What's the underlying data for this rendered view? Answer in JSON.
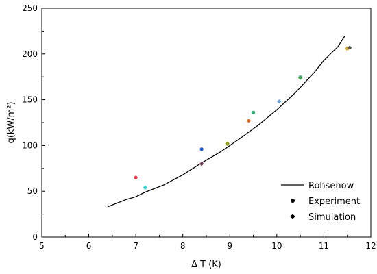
{
  "chart_data": {
    "type": "line",
    "xlabel": "Δ T (K)",
    "ylabel": "q(kW/m²)",
    "xlim": [
      5,
      12
    ],
    "ylim": [
      0,
      250
    ],
    "xticks": [
      "5",
      "6",
      "7",
      "8",
      "9",
      "10",
      "11",
      "12"
    ],
    "yticks": [
      "0",
      "50",
      "100",
      "150",
      "200",
      "250"
    ],
    "grid": false,
    "legend_position": "bottom-right",
    "legend": [
      {
        "label": "Rohsenow",
        "marker": "line"
      },
      {
        "label": "Experiment",
        "marker": "circle"
      },
      {
        "label": "Simulation",
        "marker": "diamond"
      }
    ],
    "series": [
      {
        "name": "Rohsenow",
        "kind": "line",
        "color": "#000000",
        "x": [
          6.4,
          6.8,
          7.0,
          7.2,
          7.6,
          8.0,
          8.4,
          8.8,
          9.2,
          9.6,
          10.0,
          10.4,
          10.8,
          11.0,
          11.3,
          11.45
        ],
        "y": [
          33,
          41,
          44,
          49,
          57,
          68,
          81,
          93,
          107,
          122,
          139,
          158,
          180,
          193,
          208,
          220
        ]
      },
      {
        "name": "Experiment",
        "kind": "circle",
        "points": [
          {
            "x": 7.0,
            "y": 65,
            "color": "#f03c46"
          },
          {
            "x": 8.4,
            "y": 96,
            "color": "#1f5fd6"
          },
          {
            "x": 8.95,
            "y": 102,
            "color": "#7a9a20"
          },
          {
            "x": 9.5,
            "y": 136,
            "color": "#2eaa6c"
          },
          {
            "x": 10.5,
            "y": 175,
            "color": "#7fb4a6"
          },
          {
            "x": 11.5,
            "y": 206,
            "color": "#d9a21c"
          }
        ]
      },
      {
        "name": "Simulation",
        "kind": "diamond",
        "points": [
          {
            "x": 7.2,
            "y": 54,
            "color": "#2ed3d3"
          },
          {
            "x": 8.4,
            "y": 80,
            "color": "#7a4060"
          },
          {
            "x": 8.95,
            "y": 102,
            "color": "#9aa020"
          },
          {
            "x": 9.4,
            "y": 127,
            "color": "#f06a1e"
          },
          {
            "x": 10.05,
            "y": 148,
            "color": "#6aa0e0"
          },
          {
            "x": 10.5,
            "y": 174,
            "color": "#3aa84a"
          },
          {
            "x": 11.55,
            "y": 207,
            "color": "#555555"
          }
        ]
      }
    ]
  }
}
